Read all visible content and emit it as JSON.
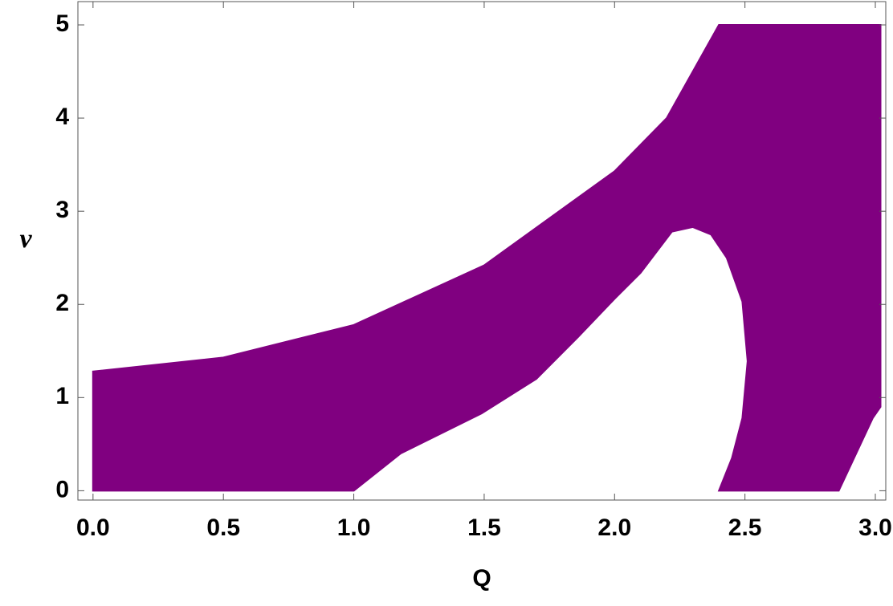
{
  "chart_data": {
    "type": "region",
    "xlabel": "Q",
    "ylabel": "ν",
    "color": "#800080",
    "x": [
      0,
      0,
      0.5,
      1.0,
      1.5,
      2.0,
      2.2,
      2.4,
      3.02,
      3.02,
      2.99,
      2.86,
      2.4,
      2.45,
      2.49,
      2.51,
      2.49,
      2.43,
      2.37,
      2.3,
      2.22,
      2.1,
      2.0,
      1.86,
      1.7,
      1.49,
      1.18,
      1.0
    ],
    "y": [
      0,
      1.28,
      1.43,
      1.78,
      2.42,
      3.43,
      4.0,
      5.0,
      5.0,
      0.9,
      0.78,
      0,
      0,
      0.35,
      0.78,
      1.39,
      2.03,
      2.5,
      2.75,
      2.83,
      2.78,
      2.34,
      2.06,
      1.65,
      1.2,
      0.83,
      0.4,
      0
    ],
    "xlim": [
      -0.058,
      3.04
    ],
    "ylim": [
      -0.1,
      5.25
    ],
    "xticks": [
      {
        "value": 0,
        "label": "0.0"
      },
      {
        "value": 0.5,
        "label": "0.5"
      },
      {
        "value": 1,
        "label": "1.0"
      },
      {
        "value": 1.5,
        "label": "1.5"
      },
      {
        "value": 2,
        "label": "2.0"
      },
      {
        "value": 2.5,
        "label": "2.5"
      },
      {
        "value": 3,
        "label": "3.0"
      }
    ],
    "yticks": [
      0,
      1,
      2,
      3,
      4,
      5
    ]
  }
}
